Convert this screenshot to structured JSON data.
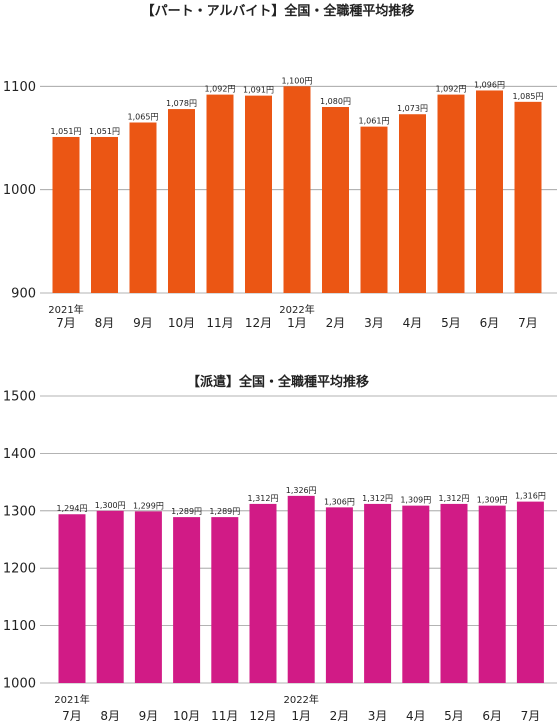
{
  "chart_data": [
    {
      "type": "bar",
      "title": "【パート・アルバイト】全国・全職種平均推移",
      "categories": [
        "7月",
        "8月",
        "9月",
        "10月",
        "11月",
        "12月",
        "1月",
        "2月",
        "3月",
        "4月",
        "5月",
        "6月",
        "7月"
      ],
      "year_labels": [
        {
          "index": 0,
          "label": "2021年"
        },
        {
          "index": 6,
          "label": "2022年"
        }
      ],
      "values": [
        1051,
        1051,
        1065,
        1078,
        1092,
        1091,
        1100,
        1080,
        1061,
        1073,
        1092,
        1096,
        1085
      ],
      "data_labels": [
        "1,051円",
        "1,051円",
        "1,065円",
        "1,078円",
        "1,092円",
        "1,091円",
        "1,100円",
        "1,080円",
        "1,061円",
        "1,073円",
        "1,092円",
        "1,096円",
        "1,085円"
      ],
      "yticks": [
        "900",
        "1000",
        "1100"
      ],
      "ylim": [
        900,
        1110
      ],
      "color": "#EB5614",
      "grid": true
    },
    {
      "type": "bar",
      "title": "【派遣】全国・全職種平均推移",
      "categories": [
        "7月",
        "8月",
        "9月",
        "10月",
        "11月",
        "12月",
        "1月",
        "2月",
        "3月",
        "4月",
        "5月",
        "6月",
        "7月"
      ],
      "year_labels": [
        {
          "index": 0,
          "label": "2021年"
        },
        {
          "index": 6,
          "label": "2022年"
        }
      ],
      "values": [
        1294,
        1300,
        1299,
        1289,
        1289,
        1312,
        1326,
        1306,
        1312,
        1309,
        1312,
        1309,
        1316
      ],
      "data_labels": [
        "1,294円",
        "1,300円",
        "1,299円",
        "1,289円",
        "1,289円",
        "1,312円",
        "1,326円",
        "1,306円",
        "1,312円",
        "1,309円",
        "1,312円",
        "1,309円",
        "1,316円"
      ],
      "yticks": [
        "1000",
        "1100",
        "1200",
        "1300",
        "1400",
        "1500"
      ],
      "ylim": [
        1000,
        1500
      ],
      "color": "#D11B86",
      "grid": true
    }
  ]
}
